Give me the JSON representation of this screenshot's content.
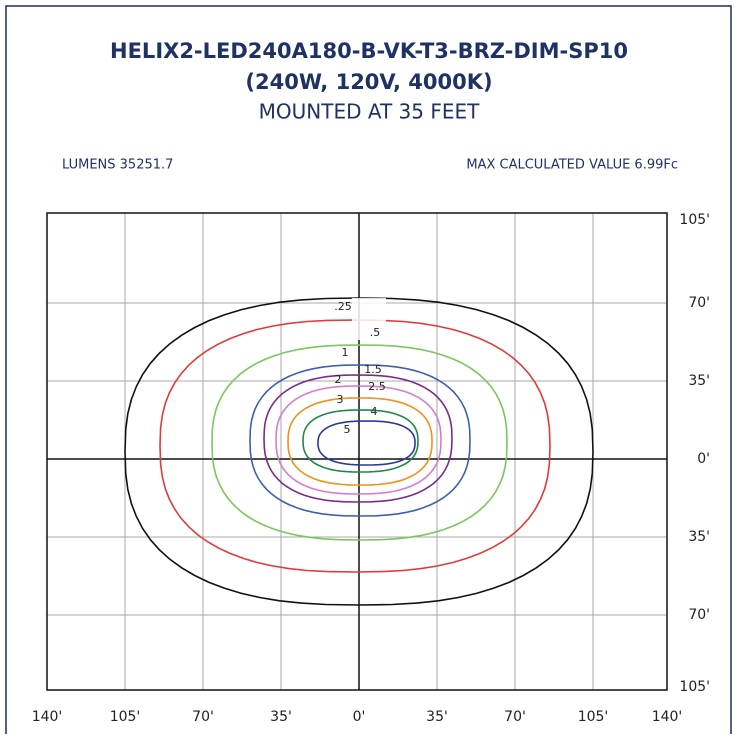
{
  "header": {
    "title_line1": "HELIX2-LED240A180-B-VK-T3-BRZ-DIM-SP10",
    "title_line2": "(240W, 120V, 4000K)",
    "subtitle": "MOUNTED AT 35 FEET"
  },
  "info": {
    "lumens": "LUMENS 35251.7",
    "max_value": "MAX CALCULATED VALUE 6.99Fc"
  },
  "x_labels": [
    "140'",
    "105'",
    "70'",
    "35'",
    "0'",
    "35'",
    "70'",
    "105'",
    "140'"
  ],
  "y_labels": [
    "105'",
    "70'",
    "35'",
    "0'",
    "35'",
    "70'",
    "105'"
  ],
  "contours": [
    {
      "label": ".25",
      "color": "#111111"
    },
    {
      "label": ".5",
      "color": "#e03a3a"
    },
    {
      "label": "1",
      "color": "#7cc75a"
    },
    {
      "label": "1.5",
      "color": "#3f5fb0"
    },
    {
      "label": "2",
      "color": "#7a2c8a"
    },
    {
      "label": "2.5",
      "color": "#d77ccc"
    },
    {
      "label": "3",
      "color": "#f0901e"
    },
    {
      "label": "4",
      "color": "#1f8a4a"
    },
    {
      "label": "5",
      "color": "#2a3a9a"
    }
  ]
}
